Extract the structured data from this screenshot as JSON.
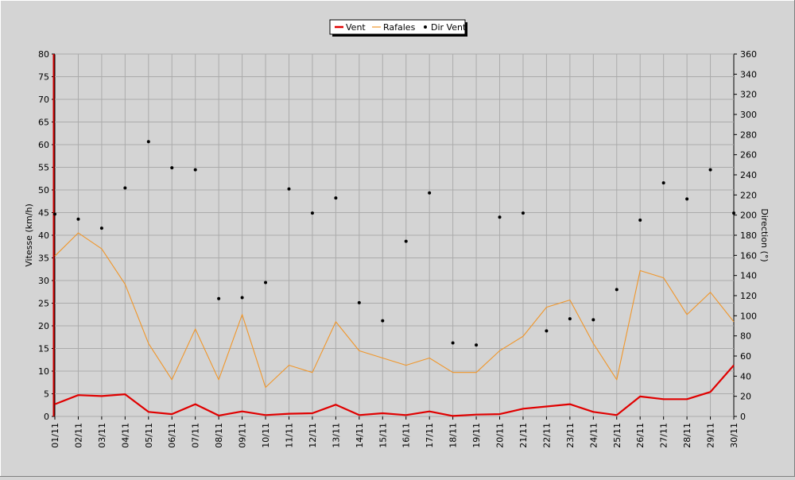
{
  "chart_data": {
    "type": "line",
    "categories": [
      "01/11",
      "02/11",
      "03/11",
      "04/11",
      "05/11",
      "06/11",
      "07/11",
      "08/11",
      "09/11",
      "10/11",
      "11/11",
      "12/11",
      "13/11",
      "14/11",
      "15/11",
      "16/11",
      "17/11",
      "18/11",
      "19/11",
      "20/11",
      "21/11",
      "22/11",
      "23/11",
      "24/11",
      "25/11",
      "26/11",
      "27/11",
      "28/11",
      "29/11",
      "30/11"
    ],
    "ylabel": "Vitesse (km/h)",
    "y2label": "Direction (°)",
    "ylim": [
      0,
      80
    ],
    "y2lim": [
      0,
      360
    ],
    "yticks": [
      "0",
      "5",
      "10",
      "15",
      "20",
      "25",
      "30",
      "35",
      "40",
      "45",
      "50",
      "55",
      "60",
      "65",
      "70",
      "75",
      "80"
    ],
    "y2ticks": [
      "0",
      "20",
      "40",
      "60",
      "80",
      "100",
      "120",
      "140",
      "160",
      "180",
      "200",
      "220",
      "240",
      "260",
      "280",
      "300",
      "320",
      "340",
      "360"
    ],
    "grid": true,
    "legend_position": "top-center",
    "series": [
      {
        "name": "Vent",
        "axis": "left",
        "kind": "line",
        "color": "#e00000",
        "values": [
          2.7,
          4.7,
          4.5,
          4.9,
          1.0,
          0.5,
          2.7,
          0.2,
          1.1,
          0.3,
          0.6,
          0.7,
          2.6,
          0.3,
          0.7,
          0.3,
          1.1,
          0.1,
          0.4,
          0.5,
          1.7,
          2.2,
          2.7,
          1.0,
          0.3,
          4.4,
          3.8,
          3.8,
          5.4,
          11.3
        ]
      },
      {
        "name": "Rafales",
        "axis": "left",
        "kind": "line",
        "color": "#f0962a",
        "values": [
          35.4,
          40.5,
          37.0,
          29.2,
          16.1,
          8.1,
          19.3,
          8.1,
          22.5,
          6.4,
          11.3,
          9.7,
          20.9,
          14.5,
          12.9,
          11.3,
          12.9,
          9.7,
          9.7,
          14.5,
          17.7,
          24.1,
          25.7,
          16.1,
          8.1,
          32.2,
          30.6,
          22.5,
          27.4,
          20.9
        ]
      },
      {
        "name": "Dir Vent",
        "axis": "right",
        "kind": "scatter",
        "color": "#000000",
        "values": [
          201,
          196,
          187,
          227,
          273,
          247,
          245,
          117,
          118,
          133,
          226,
          202,
          217,
          113,
          95,
          174,
          222,
          73,
          71,
          198,
          202,
          85,
          97,
          96,
          126,
          195,
          232,
          216,
          245,
          202
        ]
      }
    ]
  }
}
